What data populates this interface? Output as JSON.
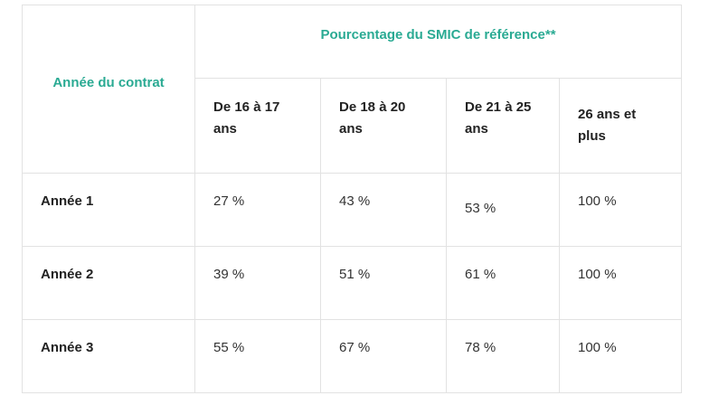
{
  "table": {
    "corner_header": "Année du contrat",
    "group_header": "Pourcentage du SMIC de référence**",
    "columns": [
      "De 16 à 17 ans",
      "De 18 à 20 ans",
      "De 21 à 25 ans",
      "26 ans et plus"
    ],
    "rows": [
      {
        "label": "Année 1",
        "values": [
          "27 %",
          "43 %",
          "53 %",
          "100 %"
        ]
      },
      {
        "label": "Année 2",
        "values": [
          "39 %",
          "51 %",
          "61 %",
          "100 %"
        ]
      },
      {
        "label": "Année 3",
        "values": [
          "55 %",
          "67 %",
          "78 %",
          "100 %"
        ]
      }
    ]
  },
  "colors": {
    "accent": "#2aaa93",
    "border": "#e2e2e2",
    "text": "#333333"
  }
}
